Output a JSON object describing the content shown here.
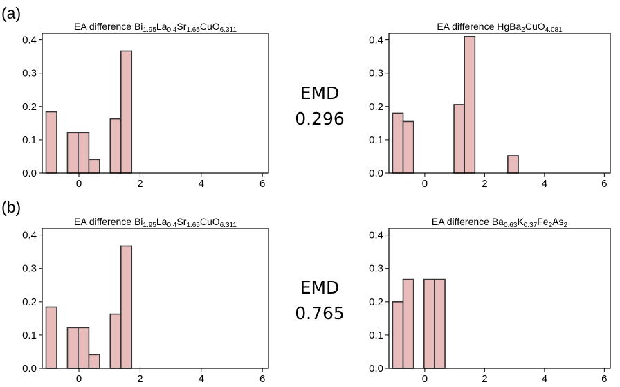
{
  "panels": [
    {
      "label": "(a)",
      "emd_label": "EMD",
      "emd_value": "0.296"
    },
    {
      "label": "(b)",
      "emd_label": "EMD",
      "emd_value": "0.765"
    }
  ],
  "colors": {
    "bar_fill": "#e8bcbb",
    "bar_edge": "#333333",
    "axis": "#000000"
  },
  "chart_data": [
    {
      "type": "bar",
      "title_parts": [
        {
          "t": "EA difference Bi"
        },
        {
          "t": "1.95",
          "sub": true
        },
        {
          "t": "La"
        },
        {
          "t": "0.4",
          "sub": true
        },
        {
          "t": "Sr"
        },
        {
          "t": "1.65",
          "sub": true
        },
        {
          "t": "CuO"
        },
        {
          "t": "6.311",
          "sub": true
        }
      ],
      "xlim": [
        -1.2,
        6.2
      ],
      "ylim": [
        0,
        0.42
      ],
      "xticks": [
        0,
        2,
        4,
        6
      ],
      "xtick_labels": [
        "0",
        "2",
        "4",
        "6"
      ],
      "yticks": [
        0.0,
        0.1,
        0.2,
        0.3,
        0.4
      ],
      "ytick_labels": [
        "0.0",
        "0.1",
        "0.2",
        "0.3",
        "0.4"
      ],
      "bin_width": 0.35,
      "bars": [
        {
          "x": -0.9,
          "value": 0.184
        },
        {
          "x": -0.2,
          "value": 0.122
        },
        {
          "x": 0.15,
          "value": 0.122
        },
        {
          "x": 0.5,
          "value": 0.041
        },
        {
          "x": 1.2,
          "value": 0.163
        },
        {
          "x": 1.55,
          "value": 0.367
        }
      ]
    },
    {
      "type": "bar",
      "title_parts": [
        {
          "t": "EA difference HgBa"
        },
        {
          "t": "2",
          "sub": true
        },
        {
          "t": "CuO"
        },
        {
          "t": "4.081",
          "sub": true
        }
      ],
      "xlim": [
        -1.2,
        6.2
      ],
      "ylim": [
        0,
        0.42
      ],
      "xticks": [
        0,
        2,
        4,
        6
      ],
      "xtick_labels": [
        "0",
        "2",
        "4",
        "6"
      ],
      "yticks": [
        0.0,
        0.1,
        0.2,
        0.3,
        0.4
      ],
      "ytick_labels": [
        "0.0",
        "0.1",
        "0.2",
        "0.3",
        "0.4"
      ],
      "bin_width": 0.35,
      "bars": [
        {
          "x": -0.9,
          "value": 0.18
        },
        {
          "x": -0.55,
          "value": 0.155
        },
        {
          "x": 1.15,
          "value": 0.206
        },
        {
          "x": 1.5,
          "value": 0.41
        },
        {
          "x": 2.95,
          "value": 0.052
        }
      ]
    },
    {
      "type": "bar",
      "title_parts": [
        {
          "t": "EA difference Bi"
        },
        {
          "t": "1.95",
          "sub": true
        },
        {
          "t": "La"
        },
        {
          "t": "0.4",
          "sub": true
        },
        {
          "t": "Sr"
        },
        {
          "t": "1.65",
          "sub": true
        },
        {
          "t": "CuO"
        },
        {
          "t": "6.311",
          "sub": true
        }
      ],
      "xlim": [
        -1.2,
        6.2
      ],
      "ylim": [
        0,
        0.42
      ],
      "xticks": [
        0,
        2,
        4,
        6
      ],
      "xtick_labels": [
        "0",
        "2",
        "4",
        "6"
      ],
      "yticks": [
        0.0,
        0.1,
        0.2,
        0.3,
        0.4
      ],
      "ytick_labels": [
        "0.0",
        "0.1",
        "0.2",
        "0.3",
        "0.4"
      ],
      "bin_width": 0.35,
      "bars": [
        {
          "x": -0.9,
          "value": 0.184
        },
        {
          "x": -0.2,
          "value": 0.122
        },
        {
          "x": 0.15,
          "value": 0.122
        },
        {
          "x": 0.5,
          "value": 0.041
        },
        {
          "x": 1.2,
          "value": 0.163
        },
        {
          "x": 1.55,
          "value": 0.367
        }
      ]
    },
    {
      "type": "bar",
      "title_parts": [
        {
          "t": "EA difference Ba"
        },
        {
          "t": "0.63",
          "sub": true
        },
        {
          "t": "K"
        },
        {
          "t": "0.37",
          "sub": true
        },
        {
          "t": "Fe"
        },
        {
          "t": "2",
          "sub": true
        },
        {
          "t": "As"
        },
        {
          "t": "2",
          "sub": true
        }
      ],
      "xlim": [
        -1.2,
        6.2
      ],
      "ylim": [
        0,
        0.42
      ],
      "xticks": [
        0,
        2,
        4,
        6
      ],
      "xtick_labels": [
        "0",
        "2",
        "4",
        "6"
      ],
      "yticks": [
        0.0,
        0.1,
        0.2,
        0.3,
        0.4
      ],
      "ytick_labels": [
        "0.0",
        "0.1",
        "0.2",
        "0.3",
        "0.4"
      ],
      "bin_width": 0.35,
      "bars": [
        {
          "x": -0.9,
          "value": 0.2
        },
        {
          "x": -0.55,
          "value": 0.267
        },
        {
          "x": 0.15,
          "value": 0.267
        },
        {
          "x": 0.5,
          "value": 0.267
        }
      ]
    }
  ]
}
